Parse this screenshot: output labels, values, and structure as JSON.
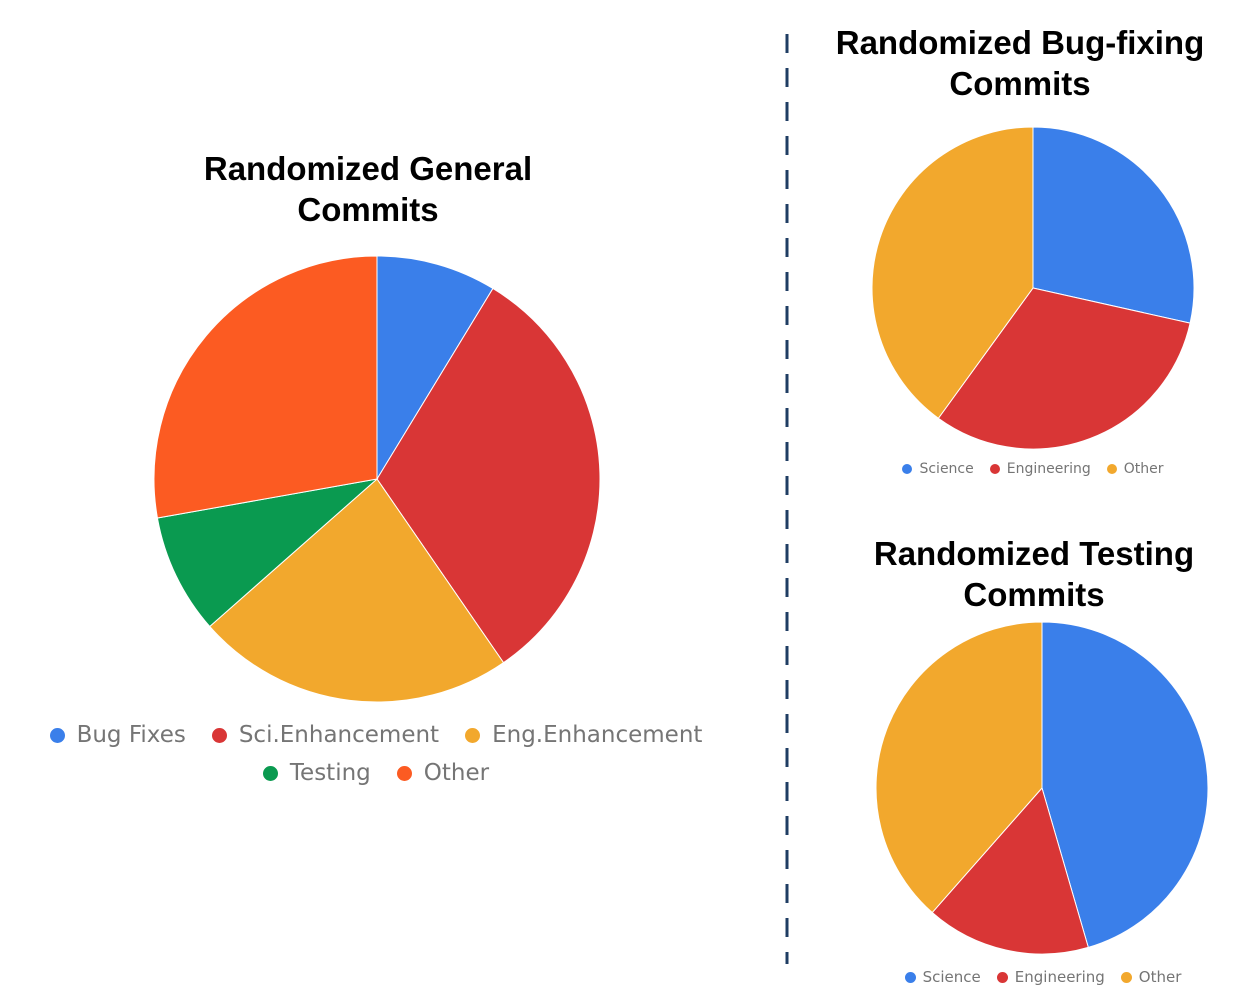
{
  "chart_data": [
    {
      "id": "general",
      "type": "pie",
      "title_lines": [
        "Randomized General",
        "Commits"
      ],
      "categories": [
        "Bug Fixes",
        "Sci.Enhancement",
        "Eng.Enhancement",
        "Testing",
        "Other"
      ],
      "values": [
        8.7,
        31.7,
        23.1,
        8.7,
        27.8
      ],
      "colors": [
        "#3A7FEA",
        "#D93636",
        "#F2A82D",
        "#0A9A50",
        "#FC5B22"
      ],
      "legend_position": "bottom"
    },
    {
      "id": "bugfix",
      "type": "pie",
      "title_lines": [
        "Randomized Bug-fixing",
        "Commits"
      ],
      "categories": [
        "Science",
        "Engineering",
        "Other"
      ],
      "values": [
        28.5,
        31.5,
        40.0
      ],
      "colors": [
        "#3A7FEA",
        "#D93636",
        "#F2A82D"
      ],
      "legend_position": "bottom"
    },
    {
      "id": "testing",
      "type": "pie",
      "title_lines": [
        "Randomized Testing",
        "Commits"
      ],
      "categories": [
        "Science",
        "Engineering",
        "Other"
      ],
      "values": [
        45.5,
        16.0,
        38.5
      ],
      "colors": [
        "#3A7FEA",
        "#D93636",
        "#F2A82D"
      ],
      "legend_position": "bottom"
    }
  ],
  "divider": {
    "color": "#1F3D63",
    "style": "dashed"
  }
}
